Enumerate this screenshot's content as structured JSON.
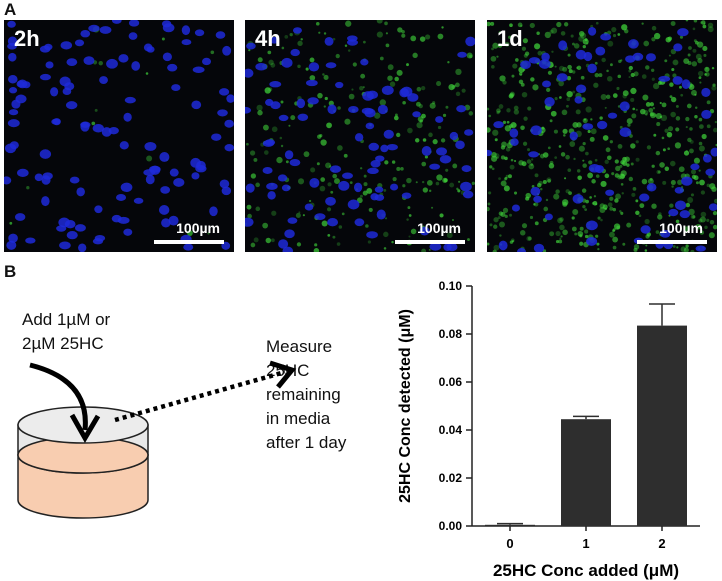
{
  "panel_a": {
    "label": "A",
    "images": [
      {
        "timepoint": "2h",
        "scale_bar": "100µm",
        "green_signal": 0.02
      },
      {
        "timepoint": "4h",
        "scale_bar": "100µm",
        "green_signal": 0.35
      },
      {
        "timepoint": "1d",
        "scale_bar": "100µm",
        "green_signal": 0.85
      }
    ]
  },
  "panel_b": {
    "label": "B",
    "add_text": "Add 1µM or\n2µM 25HC",
    "measure_text": "Measure\n25HC\nremaining\nin media\nafter 1 day",
    "colors": {
      "media": "#f8cdb0",
      "dish_top": "#e8e8e8",
      "bar": "#2e2e2e",
      "nuclei": "#1f2ad8",
      "green": "#3fd33a"
    }
  },
  "chart_data": {
    "type": "bar",
    "categories": [
      "0",
      "1",
      "2"
    ],
    "values": [
      0.0005,
      0.0445,
      0.0835
    ],
    "errors": [
      0.0005,
      0.0012,
      0.009
    ],
    "xlabel": "25HC Conc added (μM)",
    "ylabel": "25HC Conc detected (μM)",
    "ylim": [
      0,
      0.1
    ],
    "yticks": [
      "0.00",
      "0.02",
      "0.04",
      "0.06",
      "0.08",
      "0.10"
    ],
    "bar_color": "#2e2e2e",
    "grid": false
  }
}
